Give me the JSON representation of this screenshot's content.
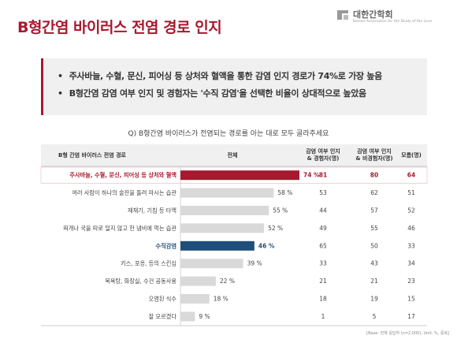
{
  "title": "B형간염 바이러스 전염 경로 인지",
  "logo": {
    "name": "대한간학회",
    "subtitle": "Korean Association for the Study of the Liver"
  },
  "summary": [
    "주사바늘, 수혈, 문신, 피어싱 등 상처와 혈액을 통한 감염 인지 경로가 74%로 가장 높음",
    "B형간염 감염 여부 인지 및 경험자는 '수직 감염'을 선택한 비율이 상대적으로 높았음"
  ],
  "question": "Q) B형간염 바이러스가 전염되는 경로를 아는 대로 모두 골라주세요",
  "headers": {
    "route": "B형 간염 바이러스 전염 경로",
    "total": "전체",
    "aware": [
      "감염 여부 인지",
      "& 경험자(명)"
    ],
    "aware_no": [
      "감염 여부 인지",
      "& 비경험자(명)"
    ],
    "unknown": "모름(명)"
  },
  "chart_data": {
    "type": "bar",
    "orientation": "horizontal",
    "categories": [
      "주사바늘, 수혈, 문신, 피어싱 등 상처와 혈액",
      "여러 사람이 하나의 술잔을 돌려 마시는 습관",
      "재채기, 기침 등 타액",
      "찌개나 국을 따로 덜지 않고 한 냄비에 먹는 습관",
      "수직감염",
      "키스, 포옹, 등의 스킨십",
      "목욕탕, 화장실, 수건 공동사용",
      "오염된 식수",
      "잘 모르겠다"
    ],
    "values": [
      74,
      58,
      55,
      52,
      46,
      39,
      22,
      18,
      9
    ],
    "value_labels": [
      "74 %",
      "58 %",
      "55 %",
      "52 %",
      "46 %",
      "39 %",
      "22 %",
      "18 %",
      "9 %"
    ],
    "xlim": [
      0,
      100
    ],
    "highlight": [
      0,
      4
    ],
    "colors": {
      "top": "#a6192e",
      "vertical": "#1f4e79",
      "default": "#d9d9d9"
    },
    "table": {
      "aware_experienced": [
        81,
        53,
        44,
        49,
        65,
        33,
        21,
        18,
        1
      ],
      "aware_not_experienced": [
        80,
        62,
        57,
        55,
        50,
        43,
        21,
        19,
        5
      ],
      "unknown": [
        64,
        51,
        52,
        46,
        33,
        34,
        23,
        15,
        17
      ]
    }
  },
  "footnote": "[Base: 전체 응답자 (n=2,000), Unit: %, 중복]"
}
